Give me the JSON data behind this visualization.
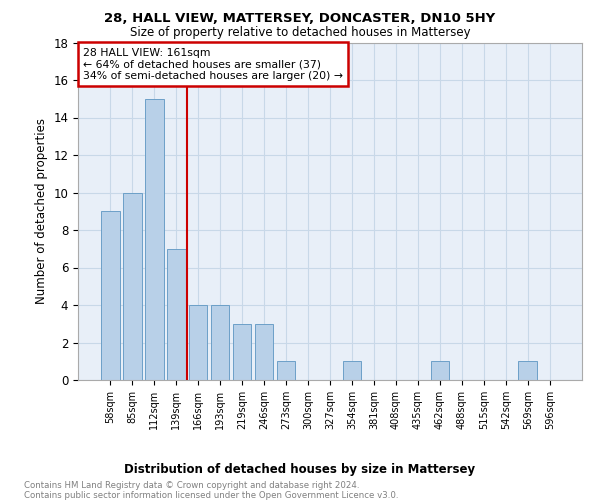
{
  "title1": "28, HALL VIEW, MATTERSEY, DONCASTER, DN10 5HY",
  "title2": "Size of property relative to detached houses in Mattersey",
  "xlabel": "Distribution of detached houses by size in Mattersey",
  "ylabel": "Number of detached properties",
  "footer1": "Contains HM Land Registry data © Crown copyright and database right 2024.",
  "footer2": "Contains public sector information licensed under the Open Government Licence v3.0.",
  "categories": [
    "58sqm",
    "85sqm",
    "112sqm",
    "139sqm",
    "166sqm",
    "193sqm",
    "219sqm",
    "246sqm",
    "273sqm",
    "300sqm",
    "327sqm",
    "354sqm",
    "381sqm",
    "408sqm",
    "435sqm",
    "462sqm",
    "488sqm",
    "515sqm",
    "542sqm",
    "569sqm",
    "596sqm"
  ],
  "values": [
    9,
    10,
    15,
    7,
    4,
    4,
    3,
    3,
    1,
    0,
    0,
    1,
    0,
    0,
    0,
    1,
    0,
    0,
    0,
    1,
    0
  ],
  "bar_color": "#b8d0e8",
  "bar_edge_color": "#6ca0c8",
  "vline_color": "#cc0000",
  "annotation_title": "28 HALL VIEW: 161sqm",
  "annotation_line2": "← 64% of detached houses are smaller (37)",
  "annotation_line3": "34% of semi-detached houses are larger (20) →",
  "annotation_box_color": "#cc0000",
  "ylim": [
    0,
    18
  ],
  "yticks": [
    0,
    2,
    4,
    6,
    8,
    10,
    12,
    14,
    16,
    18
  ],
  "grid_color": "#c8d8e8",
  "bg_color": "#e8eff8"
}
